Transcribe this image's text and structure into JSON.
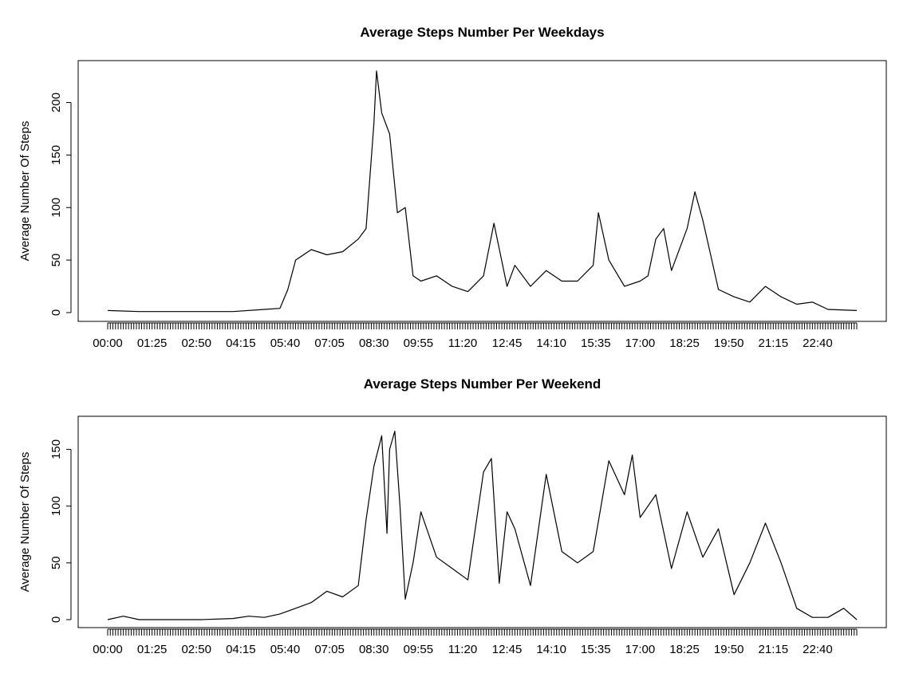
{
  "chart_data": [
    {
      "type": "line",
      "title": "Average Steps Number Per Weekdays",
      "xlabel": "",
      "ylabel": "Average Number Of Steps",
      "ylim": [
        0,
        230
      ],
      "y_ticks": [
        0,
        50,
        100,
        150,
        200
      ],
      "grid": false,
      "x_tick_labels": [
        "00:00",
        "01:25",
        "02:50",
        "04:15",
        "05:40",
        "07:05",
        "08:30",
        "09:55",
        "11:20",
        "12:45",
        "14:10",
        "15:35",
        "17:00",
        "18:25",
        "19:50",
        "21:15",
        "22:40"
      ],
      "interval_count": 288,
      "x": [
        "00:00",
        "01:00",
        "02:00",
        "03:00",
        "04:00",
        "05:00",
        "05:30",
        "05:45",
        "06:00",
        "06:30",
        "07:00",
        "07:30",
        "08:00",
        "08:15",
        "08:30",
        "08:35",
        "08:45",
        "09:00",
        "09:15",
        "09:30",
        "09:45",
        "10:00",
        "10:30",
        "11:00",
        "11:30",
        "12:00",
        "12:20",
        "12:45",
        "13:00",
        "13:30",
        "14:00",
        "14:30",
        "15:00",
        "15:30",
        "15:40",
        "16:00",
        "16:30",
        "17:00",
        "17:15",
        "17:30",
        "17:45",
        "18:00",
        "18:30",
        "18:45",
        "19:00",
        "19:30",
        "20:00",
        "20:30",
        "21:00",
        "21:30",
        "22:00",
        "22:30",
        "23:00",
        "23:55"
      ],
      "series": [
        {
          "values": [
            2,
            1,
            1,
            1,
            1,
            3,
            4,
            22,
            50,
            60,
            55,
            58,
            70,
            80,
            180,
            230,
            190,
            170,
            95,
            100,
            35,
            30,
            35,
            25,
            20,
            35,
            85,
            25,
            45,
            25,
            40,
            30,
            30,
            45,
            95,
            50,
            25,
            30,
            35,
            70,
            80,
            40,
            80,
            115,
            88,
            22,
            15,
            10,
            25,
            15,
            8,
            10,
            3,
            2
          ]
        }
      ]
    },
    {
      "type": "line",
      "title": "Average Steps Number Per Weekend",
      "xlabel": "",
      "ylabel": "Average Number Of Steps",
      "ylim": [
        0,
        170
      ],
      "y_ticks": [
        0,
        50,
        100,
        150
      ],
      "grid": false,
      "x_tick_labels": [
        "00:00",
        "01:25",
        "02:50",
        "04:15",
        "05:40",
        "07:05",
        "08:30",
        "09:55",
        "11:20",
        "12:45",
        "14:10",
        "15:35",
        "17:00",
        "18:25",
        "19:50",
        "21:15",
        "22:40"
      ],
      "interval_count": 288,
      "x": [
        "00:00",
        "00:30",
        "01:00",
        "02:00",
        "03:00",
        "04:00",
        "04:30",
        "05:00",
        "05:30",
        "06:00",
        "06:30",
        "07:00",
        "07:30",
        "08:00",
        "08:15",
        "08:30",
        "08:45",
        "08:55",
        "09:00",
        "09:10",
        "09:20",
        "09:30",
        "09:45",
        "10:00",
        "10:30",
        "11:00",
        "11:30",
        "12:00",
        "12:15",
        "12:30",
        "12:45",
        "13:00",
        "13:30",
        "14:00",
        "14:30",
        "15:00",
        "15:30",
        "16:00",
        "16:30",
        "16:45",
        "17:00",
        "17:30",
        "18:00",
        "18:30",
        "19:00",
        "19:30",
        "20:00",
        "20:30",
        "21:00",
        "21:30",
        "22:00",
        "22:30",
        "23:00",
        "23:30",
        "23:55"
      ],
      "series": [
        {
          "values": [
            0,
            3,
            0,
            0,
            0,
            1,
            3,
            2,
            5,
            10,
            15,
            25,
            20,
            30,
            88,
            135,
            162,
            76,
            150,
            166,
            100,
            18,
            50,
            95,
            55,
            45,
            35,
            130,
            142,
            32,
            95,
            80,
            30,
            128,
            60,
            50,
            60,
            140,
            110,
            145,
            90,
            110,
            45,
            95,
            55,
            80,
            22,
            50,
            85,
            50,
            10,
            2,
            2,
            10,
            0
          ]
        }
      ]
    }
  ]
}
